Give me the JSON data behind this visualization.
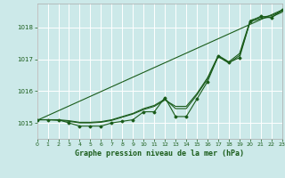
{
  "background_color": "#cce9e9",
  "grid_color": "#ffffff",
  "line_color": "#1a5c1a",
  "marker_color": "#1a5c1a",
  "title": "Graphe pression niveau de la mer (hPa)",
  "xlim": [
    0,
    23
  ],
  "ylim": [
    1014.5,
    1018.75
  ],
  "yticks": [
    1015,
    1016,
    1017,
    1018
  ],
  "xticks": [
    0,
    1,
    2,
    3,
    4,
    5,
    6,
    7,
    8,
    9,
    10,
    11,
    12,
    13,
    14,
    15,
    16,
    17,
    18,
    19,
    20,
    21,
    22,
    23
  ],
  "series_main": [
    1015.1,
    1015.1,
    1015.1,
    1015.0,
    1014.9,
    1014.9,
    1014.9,
    1015.0,
    1015.05,
    1015.1,
    1015.35,
    1015.35,
    1015.8,
    1015.2,
    1015.2,
    1015.75,
    1016.3,
    1017.1,
    1016.9,
    1017.05,
    1018.2,
    1018.35,
    1018.3,
    1018.55
  ],
  "series_smooth1": [
    1015.1,
    1015.1,
    1015.08,
    1015.05,
    1015.0,
    1015.0,
    1015.02,
    1015.08,
    1015.18,
    1015.28,
    1015.42,
    1015.52,
    1015.72,
    1015.52,
    1015.52,
    1015.92,
    1016.42,
    1017.12,
    1016.92,
    1017.18,
    1018.22,
    1018.32,
    1018.37,
    1018.52
  ],
  "series_smooth2": [
    1015.1,
    1015.1,
    1015.1,
    1015.07,
    1015.02,
    1015.02,
    1015.04,
    1015.1,
    1015.2,
    1015.3,
    1015.45,
    1015.55,
    1015.75,
    1015.45,
    1015.45,
    1015.88,
    1016.38,
    1017.08,
    1016.88,
    1017.12,
    1018.18,
    1018.28,
    1018.33,
    1018.48
  ],
  "trend_x": [
    0,
    23
  ],
  "trend_y": [
    1015.08,
    1018.55
  ]
}
